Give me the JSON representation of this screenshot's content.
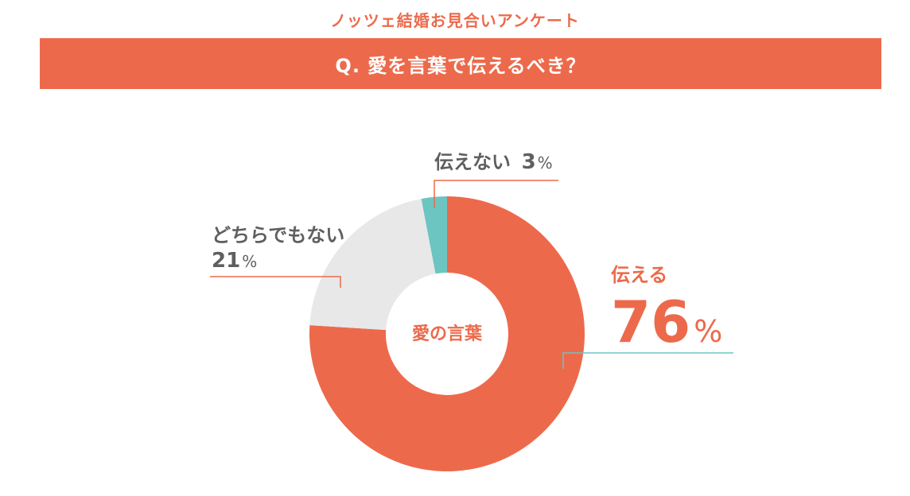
{
  "header": {
    "survey_title": "ノッツェ結婚お見合いアンケート",
    "question": "Q. 愛を言葉で伝えるべき？"
  },
  "colors": {
    "accent": "#ec6a4b",
    "teal": "#6cc5c1",
    "light_gray": "#e8e8e8",
    "text_gray": "#5f5f5f"
  },
  "chart_data": {
    "type": "pie",
    "donut": true,
    "center_label": "愛の言葉",
    "slices": [
      {
        "label": "伝える",
        "value": 76,
        "color": "#ec6a4b",
        "display_value": "76",
        "unit": "%"
      },
      {
        "label": "どちらでもない",
        "value": 21,
        "color": "#e8e8e8",
        "display_value": "21",
        "unit": "%"
      },
      {
        "label": "伝えない",
        "value": 3,
        "color": "#6cc5c1",
        "display_value": "3",
        "unit": "%"
      }
    ]
  }
}
